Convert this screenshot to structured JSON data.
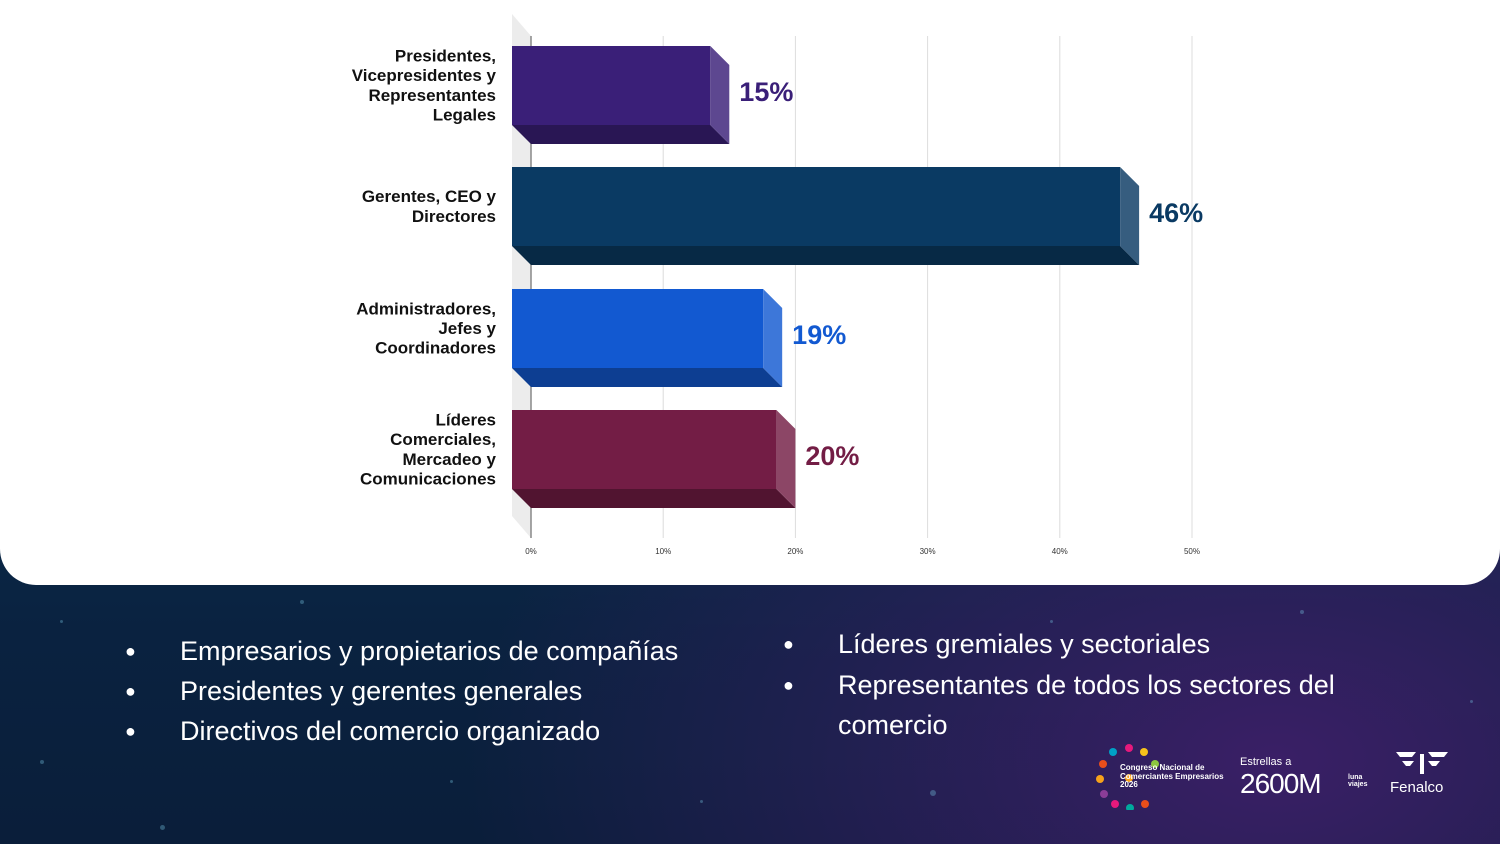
{
  "chart_data": {
    "type": "bar",
    "orientation": "horizontal",
    "categories": [
      [
        "Presidentes,",
        "Vicepresidentes y",
        "Representantes",
        "Legales"
      ],
      [
        "Gerentes, CEO y",
        "Directores"
      ],
      [
        "Administradores,",
        "Jefes y",
        "Coordinadores"
      ],
      [
        "Líderes",
        "Comerciales,",
        "Mercadeo y",
        "Comunicaciones"
      ]
    ],
    "values": [
      15,
      46,
      19,
      20
    ],
    "value_labels": [
      "15%",
      "46%",
      "19%",
      "20%"
    ],
    "colors": [
      "#3a1f78",
      "#0a3a63",
      "#1259d1",
      "#731d45"
    ],
    "xlim": [
      0,
      50
    ],
    "ticks": [
      0,
      10,
      20,
      30,
      40,
      50
    ],
    "tick_labels": [
      "0%",
      "10%",
      "20%",
      "30%",
      "40%",
      "50%"
    ],
    "grid": true,
    "title": "",
    "xlabel": "",
    "ylabel": ""
  },
  "bullets_left": [
    "Empresarios y propietarios de compañías",
    "Presidentes y gerentes generales",
    "Directivos del comercio organizado"
  ],
  "bullets_right": [
    "Líderes gremiales y sectoriales",
    "Representantes de todos los sectores del comercio"
  ],
  "logos": {
    "congreso": {
      "line1": "Congreso Nacional de",
      "line2": "Comerciantes Empresarios",
      "line3": "2026"
    },
    "estrellas": {
      "small": "Estrellas a",
      "big": "2600M",
      "tiny1": "luna",
      "tiny2": "viajes"
    },
    "fenalco": {
      "name": "Fenalco"
    }
  }
}
